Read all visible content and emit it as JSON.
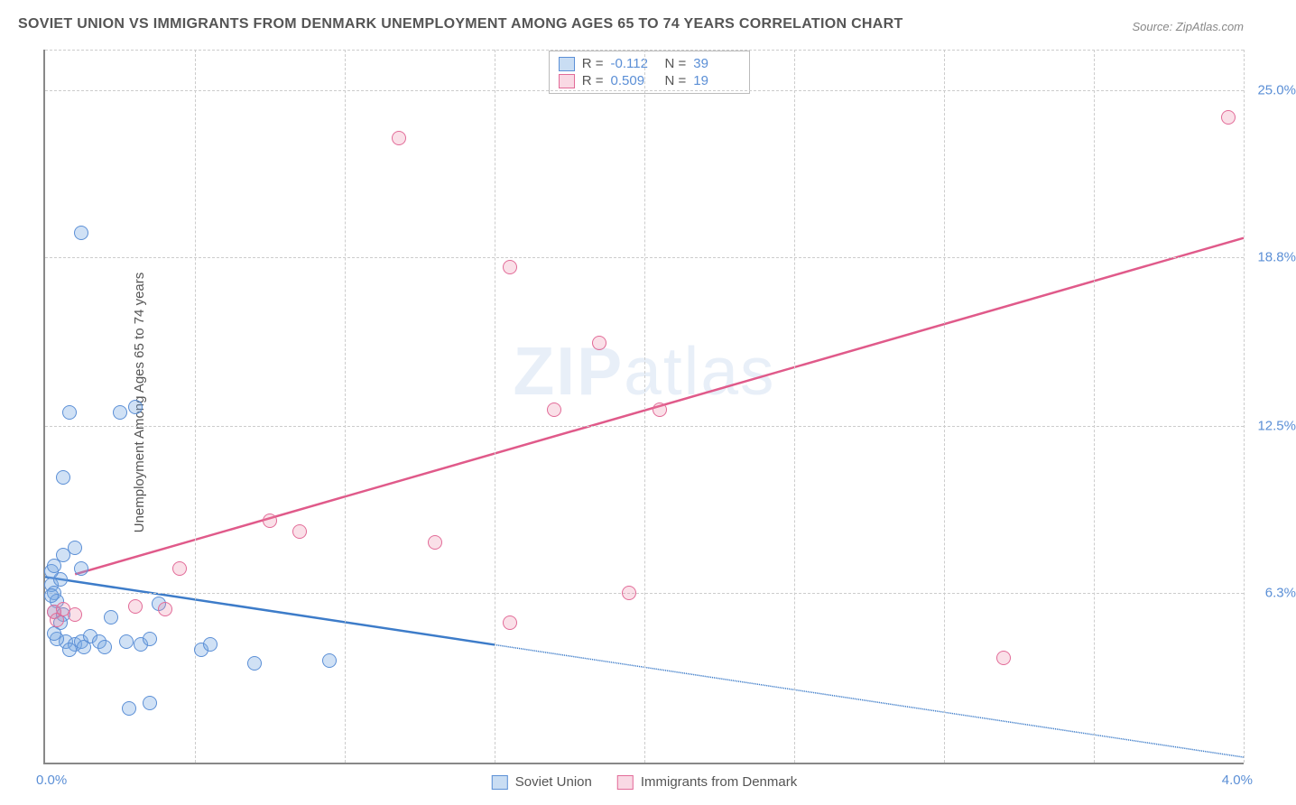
{
  "title": "SOVIET UNION VS IMMIGRANTS FROM DENMARK UNEMPLOYMENT AMONG AGES 65 TO 74 YEARS CORRELATION CHART",
  "source": "Source: ZipAtlas.com",
  "ylabel": "Unemployment Among Ages 65 to 74 years",
  "watermark_bold": "ZIP",
  "watermark_light": "atlas",
  "chart": {
    "type": "scatter",
    "xlim": [
      0.0,
      4.0
    ],
    "ylim": [
      0.0,
      26.5
    ],
    "x_tick_min_label": "0.0%",
    "x_tick_max_label": "4.0%",
    "x_grid_positions": [
      0.5,
      1.0,
      1.5,
      2.0,
      2.5,
      3.0,
      3.5,
      4.0
    ],
    "y_ticks": [
      {
        "val": 6.3,
        "label": "6.3%"
      },
      {
        "val": 12.5,
        "label": "12.5%"
      },
      {
        "val": 18.8,
        "label": "18.8%"
      },
      {
        "val": 25.0,
        "label": "25.0%"
      }
    ],
    "background_color": "#ffffff",
    "grid_color": "#cccccc",
    "axis_color": "#888888",
    "series": [
      {
        "name": "Soviet Union",
        "key": "blue",
        "point_fill": "rgba(120,170,225,0.35)",
        "point_stroke": "#5b8fd6",
        "line_color": "#3d7cc9",
        "line_width": 2.5,
        "R": "-0.112",
        "N": "39",
        "trend": {
          "x1": 0.0,
          "y1": 6.9,
          "x2_solid": 1.5,
          "y2_solid": 4.38,
          "x2_dash": 4.0,
          "y2_dash": 0.2
        },
        "points": [
          [
            0.02,
            6.6
          ],
          [
            0.03,
            6.3
          ],
          [
            0.04,
            6.0
          ],
          [
            0.05,
            6.8
          ],
          [
            0.03,
            5.6
          ],
          [
            0.06,
            5.5
          ],
          [
            0.05,
            5.2
          ],
          [
            0.07,
            4.5
          ],
          [
            0.1,
            4.4
          ],
          [
            0.12,
            4.5
          ],
          [
            0.08,
            4.2
          ],
          [
            0.04,
            4.6
          ],
          [
            0.03,
            4.8
          ],
          [
            0.13,
            4.3
          ],
          [
            0.15,
            4.7
          ],
          [
            0.18,
            4.5
          ],
          [
            0.2,
            4.3
          ],
          [
            0.22,
            5.4
          ],
          [
            0.27,
            4.5
          ],
          [
            0.32,
            4.4
          ],
          [
            0.35,
            4.6
          ],
          [
            0.38,
            5.9
          ],
          [
            0.52,
            4.2
          ],
          [
            0.55,
            4.4
          ],
          [
            0.7,
            3.7
          ],
          [
            0.95,
            3.8
          ],
          [
            0.06,
            7.7
          ],
          [
            0.1,
            8.0
          ],
          [
            0.12,
            7.2
          ],
          [
            0.06,
            10.6
          ],
          [
            0.08,
            13.0
          ],
          [
            0.25,
            13.0
          ],
          [
            0.3,
            13.2
          ],
          [
            0.12,
            19.7
          ],
          [
            0.28,
            2.0
          ],
          [
            0.35,
            2.2
          ],
          [
            0.02,
            7.1
          ],
          [
            0.03,
            7.3
          ],
          [
            0.02,
            6.2
          ]
        ]
      },
      {
        "name": "Immigrants from Denmark",
        "key": "pink",
        "point_fill": "rgba(235,130,165,0.25)",
        "point_stroke": "#e26b98",
        "line_color": "#e05a8a",
        "line_width": 2.5,
        "R": "0.509",
        "N": "19",
        "trend": {
          "x1": 0.1,
          "y1": 7.0,
          "x2_solid": 4.0,
          "y2_solid": 19.5,
          "x2_dash": 4.0,
          "y2_dash": 19.5
        },
        "points": [
          [
            0.03,
            5.6
          ],
          [
            0.04,
            5.3
          ],
          [
            0.06,
            5.7
          ],
          [
            0.1,
            5.5
          ],
          [
            0.3,
            5.8
          ],
          [
            0.4,
            5.7
          ],
          [
            0.45,
            7.2
          ],
          [
            0.75,
            9.0
          ],
          [
            0.85,
            8.6
          ],
          [
            1.3,
            8.2
          ],
          [
            1.55,
            5.2
          ],
          [
            1.7,
            13.1
          ],
          [
            2.05,
            13.1
          ],
          [
            1.95,
            6.3
          ],
          [
            1.85,
            15.6
          ],
          [
            1.55,
            18.4
          ],
          [
            1.18,
            23.2
          ],
          [
            3.2,
            3.9
          ],
          [
            3.95,
            24.0
          ]
        ]
      }
    ]
  },
  "legend": {
    "series1_label": "Soviet Union",
    "series2_label": "Immigrants from Denmark"
  },
  "stats_box": {
    "r_label": "R =",
    "n_label": "N ="
  }
}
